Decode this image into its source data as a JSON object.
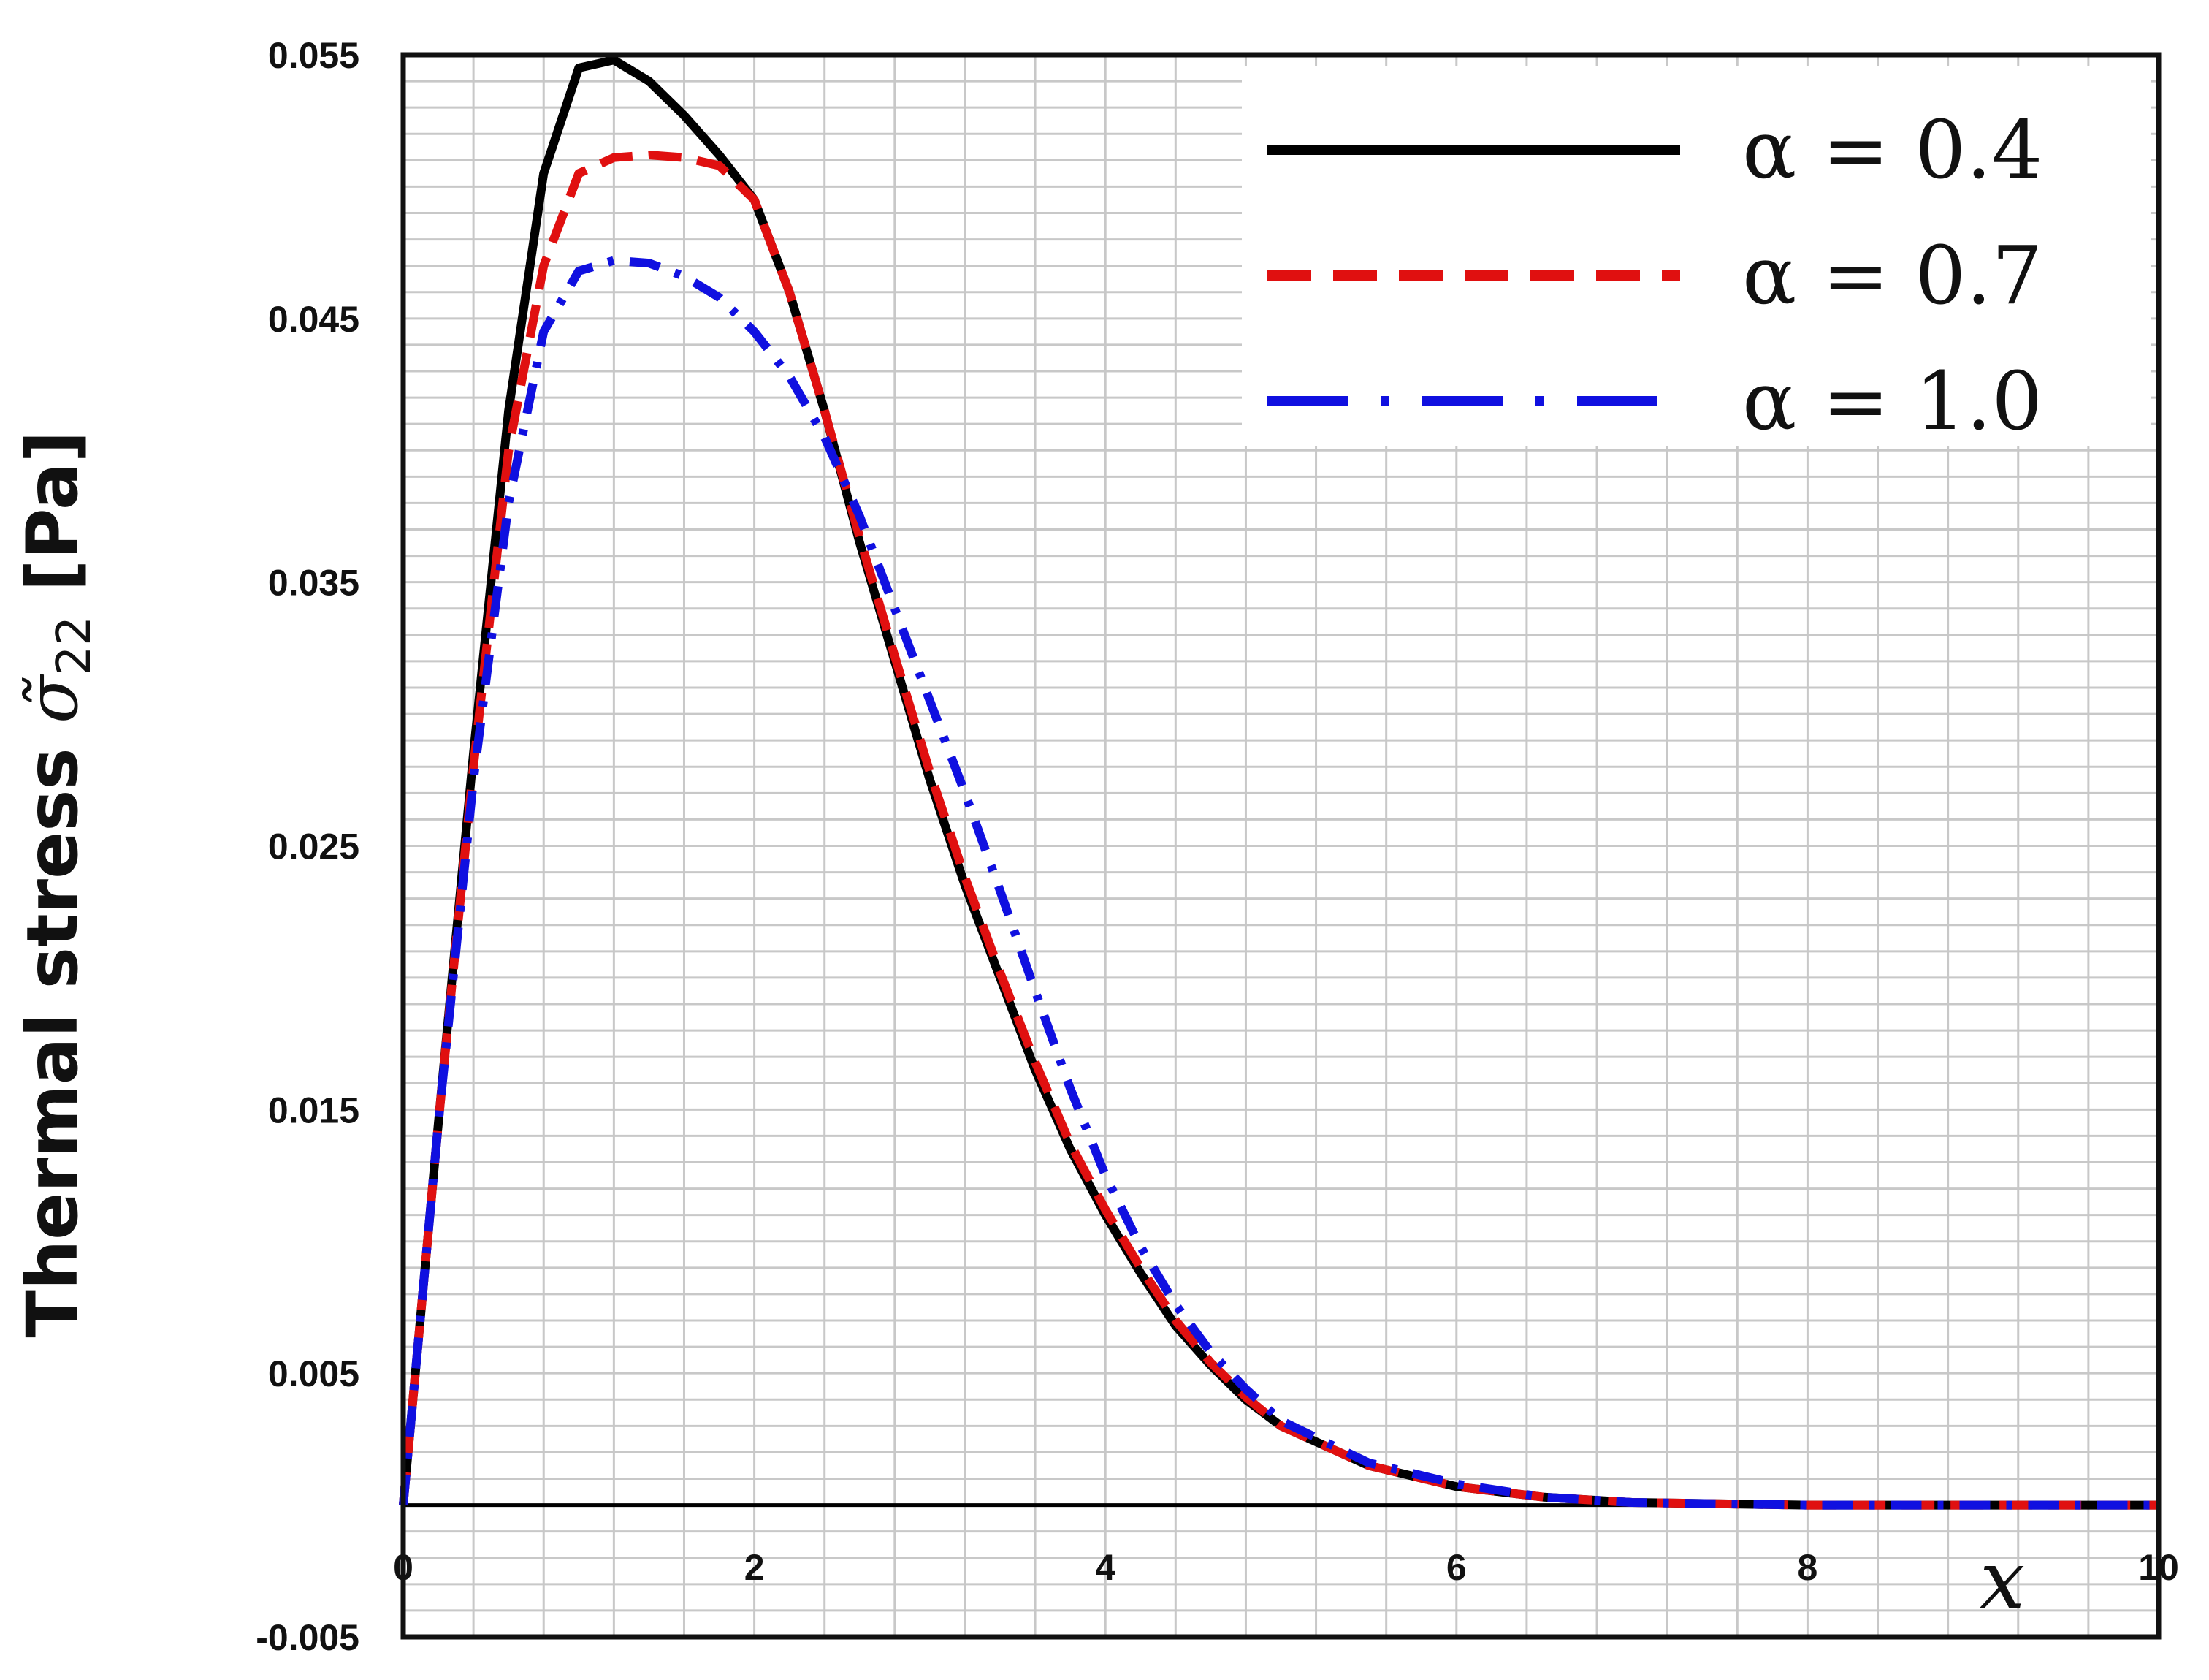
{
  "chart_data": {
    "type": "line",
    "xlabel": "x",
    "ylabel": {
      "main": "Thermal stress ",
      "symbol": "σ̃",
      "subscript": "22",
      "unit": " [Pa]"
    },
    "xlim": [
      0,
      10
    ],
    "ylim": [
      -0.005,
      0.055
    ],
    "x_ticks": [
      0,
      2,
      4,
      6,
      8,
      10
    ],
    "x_tick_labels": [
      "0",
      "2",
      "4",
      "6",
      "8",
      "10"
    ],
    "y_ticks": [
      -0.005,
      0.005,
      0.015,
      0.025,
      0.035,
      0.045,
      0.055
    ],
    "y_tick_labels": [
      "-0.005",
      "0.005",
      "0.015",
      "0.025",
      "0.035",
      "0.045",
      "0.055"
    ],
    "grid": true,
    "legend_position": "top-right",
    "series": [
      {
        "name": "α = 0.4",
        "color": "#000000",
        "style": "solid",
        "x": [
          0,
          0.2,
          0.4,
          0.6,
          0.8,
          1.0,
          1.2,
          1.4,
          1.6,
          1.8,
          2.0,
          2.2,
          2.4,
          2.6,
          2.8,
          3.0,
          3.2,
          3.4,
          3.6,
          3.8,
          4.0,
          4.2,
          4.4,
          4.6,
          4.8,
          5.0,
          5.5,
          6.0,
          6.5,
          7.0,
          8.0,
          9.0,
          10.0
        ],
        "y": [
          0,
          0.0145,
          0.0285,
          0.0415,
          0.0505,
          0.0545,
          0.0548,
          0.054,
          0.0527,
          0.0512,
          0.0495,
          0.046,
          0.0415,
          0.0365,
          0.032,
          0.0275,
          0.0235,
          0.02,
          0.0165,
          0.0135,
          0.011,
          0.0088,
          0.0068,
          0.0053,
          0.004,
          0.003,
          0.0015,
          0.0007,
          0.0003,
          0.0001,
          0.0,
          0.0,
          0.0
        ]
      },
      {
        "name": "α = 0.7",
        "color": "#e01010",
        "style": "dashed",
        "x": [
          0,
          0.2,
          0.4,
          0.6,
          0.8,
          1.0,
          1.2,
          1.4,
          1.6,
          1.8,
          2.0,
          2.2,
          2.4,
          2.6,
          2.8,
          3.0,
          3.2,
          3.4,
          3.6,
          3.8,
          4.0,
          4.2,
          4.4,
          4.6,
          4.8,
          5.0,
          5.5,
          6.0,
          6.5,
          7.0,
          8.0,
          9.0,
          10.0
        ],
        "y": [
          0,
          0.0145,
          0.028,
          0.04,
          0.047,
          0.0505,
          0.0511,
          0.0512,
          0.0511,
          0.0508,
          0.0495,
          0.046,
          0.0415,
          0.0367,
          0.0322,
          0.0278,
          0.0238,
          0.0202,
          0.0168,
          0.0137,
          0.0112,
          0.009,
          0.007,
          0.0054,
          0.0041,
          0.003,
          0.0015,
          0.0007,
          0.0003,
          0.0001,
          0.0,
          0.0,
          0.0
        ]
      },
      {
        "name": "α = 1.0",
        "color": "#1010e0",
        "style": "dash-dot",
        "x": [
          0,
          0.2,
          0.4,
          0.6,
          0.8,
          1.0,
          1.2,
          1.4,
          1.6,
          1.8,
          2.0,
          2.2,
          2.4,
          2.6,
          2.8,
          3.0,
          3.2,
          3.4,
          3.6,
          3.8,
          4.0,
          4.2,
          4.4,
          4.6,
          4.8,
          5.0,
          5.5,
          6.0,
          6.5,
          7.0,
          8.0,
          9.0,
          10.0
        ],
        "y": [
          0,
          0.0145,
          0.0275,
          0.038,
          0.0445,
          0.0468,
          0.0472,
          0.0471,
          0.0466,
          0.0458,
          0.0445,
          0.0428,
          0.0405,
          0.0375,
          0.034,
          0.0305,
          0.027,
          0.0233,
          0.0195,
          0.0158,
          0.0125,
          0.0098,
          0.0076,
          0.0058,
          0.0044,
          0.0032,
          0.0016,
          0.0008,
          0.0003,
          0.0001,
          0.0,
          0.0,
          0.0
        ]
      }
    ]
  }
}
